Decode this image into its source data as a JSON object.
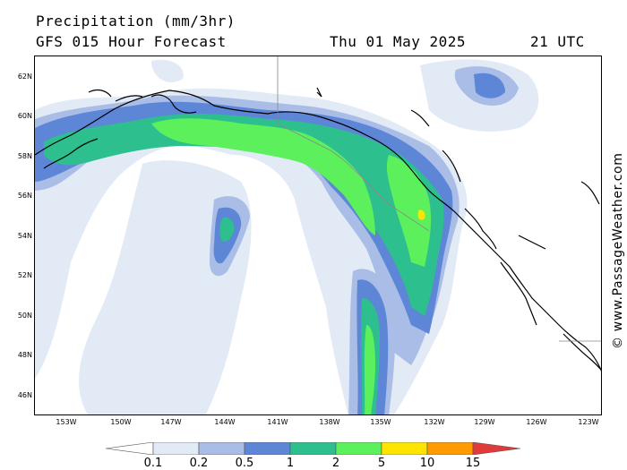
{
  "header": {
    "title": "Precipitation (mm/3hr)",
    "subtitle": "GFS 015 Hour Forecast",
    "date": "Thu 01 May 2025",
    "time": "21 UTC"
  },
  "map": {
    "lat_labels": [
      "62N",
      "60N",
      "58N",
      "56N",
      "54N",
      "52N",
      "50N",
      "48N",
      "46N"
    ],
    "lon_labels": [
      "153W",
      "150W",
      "147W",
      "144W",
      "141W",
      "138W",
      "135W",
      "132W",
      "129W",
      "126W",
      "123W"
    ]
  },
  "credit": "© www.PassageWeather.com",
  "legend": {
    "values": [
      "0.1",
      "0.2",
      "0.5",
      "1",
      "2",
      "5",
      "10",
      "15"
    ],
    "colors": [
      "#ffffff",
      "#e2eaf6",
      "#a9bde6",
      "#5d86d6",
      "#2ebf8f",
      "#5cf05c",
      "#ffe400",
      "#ff9a00",
      "#e03a3a"
    ]
  },
  "palette": {
    "level1": "#e2eaf6",
    "level2": "#a9bde6",
    "level3": "#5d86d6",
    "level4": "#2ebf8f",
    "level5": "#5cf05c",
    "level6": "#ffe400",
    "coast": "#000000",
    "border": "#888888"
  }
}
